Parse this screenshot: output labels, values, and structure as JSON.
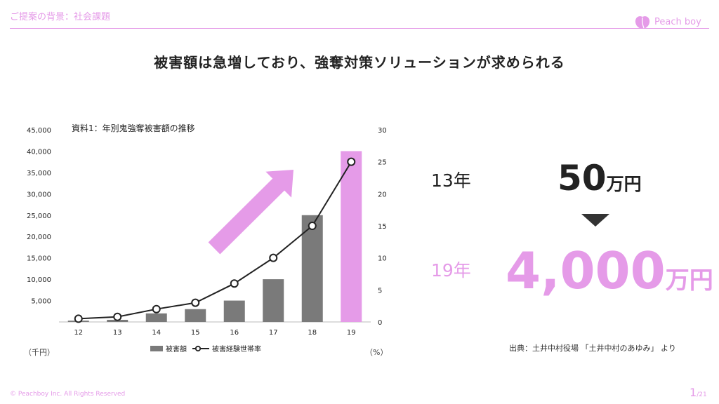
{
  "header": {
    "section": "ご提案の背景：社会課題",
    "brand": "Peach boy"
  },
  "title": "被害額は急増しており、強奪対策ソリューションが求められる",
  "chart_data": {
    "type": "bar",
    "title": "資料1：年別鬼強奪被害額の推移",
    "categories": [
      "12",
      "13",
      "14",
      "15",
      "16",
      "17",
      "18",
      "19"
    ],
    "series": [
      {
        "name": "被害額",
        "type": "bar",
        "axis": "left",
        "values": [
          300,
          500,
          2000,
          3000,
          5000,
          10000,
          25000,
          40000
        ]
      },
      {
        "name": "被害経験世帯率",
        "type": "line",
        "axis": "right",
        "values": [
          0.5,
          0.8,
          2,
          3,
          6,
          10,
          15,
          25
        ]
      }
    ],
    "highlight_category": "19",
    "y_left": {
      "min": 0,
      "max": 45000,
      "ticks": [
        "5,000",
        "10,000",
        "15,000",
        "20,000",
        "25,000",
        "30,000",
        "35,000",
        "40,000",
        "45,000"
      ],
      "unit": "（千円）"
    },
    "y_right": {
      "min": 0,
      "max": 30,
      "ticks": [
        "0",
        "5",
        "10",
        "15",
        "20",
        "25",
        "30"
      ],
      "unit": "（%）"
    },
    "colors": {
      "bar": "#7a7a7a",
      "highlight": "#e59be8",
      "line": "#222222",
      "arrow": "#e59be8"
    }
  },
  "comparison": {
    "before_year": "13年",
    "before_amount": "50",
    "before_unit": "万円",
    "after_year": "19年",
    "after_amount": "4,000",
    "after_unit": "万円"
  },
  "source": "出典：土井中村役場 「土井中村のあゆみ」 より",
  "footer": {
    "copyright": "© Peachboy Inc. All Rights Reserved",
    "page": "1",
    "total": "/21"
  }
}
